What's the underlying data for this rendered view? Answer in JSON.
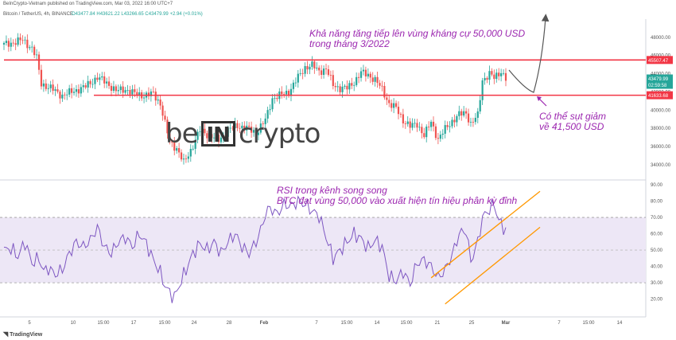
{
  "header": {
    "published": "BeInCrypto-Vietnam published on TradingView.com, Mar 03, 2022 16:00 UTC+7",
    "symbol": "Bitcoin / TetherUS, 4h, BINANCE",
    "ohlc": "O43477.84  H43621.22  L43266.65  C43479.99  +2.94 (+0.01%)"
  },
  "annotations": {
    "resistance_line1": "Khả năng tăng tiếp lên vùng kháng cự 50,000 USD",
    "resistance_line2": "trong tháng 3/2022",
    "support_line1": "Có thể sụt giảm",
    "support_line2": "về 41,500 USD",
    "rsi_line1": "RSI trong kênh song song",
    "rsi_line2": "BTC đạt vùng 50,000 vào xuất hiện tín hiệu phân kỳ đỉnh"
  },
  "logo": {
    "left": "be",
    "box": "IN",
    "right": "crypto"
  },
  "brand": "TradingView",
  "colors": {
    "bull": "#26a69a",
    "bear": "#ef5350",
    "level_line": "#f23645",
    "rsi_line": "#7e57c2",
    "rsi_band": "#ede7f6",
    "channel": "#ff9800",
    "annotation": "#9c27b0"
  },
  "chart_data": [
    {
      "type": "candlestick",
      "title": "Bitcoin / TetherUS, 4h, BINANCE",
      "x_ticks": [
        "5",
        "10",
        "15:00",
        "17",
        "15:00",
        "24",
        "28",
        "Feb",
        "7",
        "15:00",
        "14",
        "15:00",
        "21",
        "25",
        "Mar",
        "7",
        "15:00",
        "14"
      ],
      "y_ticks": [
        34000,
        36000,
        38000,
        40000,
        42000,
        44000,
        46000,
        48000
      ],
      "ylim": [
        32500,
        50000
      ],
      "levels": [
        {
          "value": 45507.47,
          "label": "45507.47"
        },
        {
          "value": 41633.68,
          "label": "41633.68"
        }
      ],
      "last_price": {
        "value": 43479.99,
        "label": "43479.99",
        "countdown": "02:59:58"
      },
      "anchors": [
        [
          0,
          47200
        ],
        [
          5,
          47500
        ],
        [
          8,
          47700
        ],
        [
          12,
          46800
        ],
        [
          14,
          45700
        ],
        [
          16,
          42900
        ],
        [
          20,
          42400
        ],
        [
          25,
          41600
        ],
        [
          30,
          42100
        ],
        [
          35,
          42600
        ],
        [
          40,
          43600
        ],
        [
          44,
          43000
        ],
        [
          48,
          42100
        ],
        [
          52,
          42300
        ],
        [
          56,
          41800
        ],
        [
          60,
          41600
        ],
        [
          64,
          41800
        ],
        [
          67,
          40700
        ],
        [
          69,
          38500
        ],
        [
          71,
          36500
        ],
        [
          74,
          35800
        ],
        [
          77,
          34200
        ],
        [
          80,
          35600
        ],
        [
          84,
          37800
        ],
        [
          88,
          37200
        ],
        [
          92,
          36700
        ],
        [
          96,
          37800
        ],
        [
          100,
          38300
        ],
        [
          104,
          38000
        ],
        [
          108,
          37500
        ],
        [
          112,
          38900
        ],
        [
          115,
          41300
        ],
        [
          118,
          41600
        ],
        [
          122,
          42000
        ],
        [
          126,
          43600
        ],
        [
          129,
          44700
        ],
        [
          132,
          44900
        ],
        [
          135,
          44300
        ],
        [
          138,
          44500
        ],
        [
          141,
          42800
        ],
        [
          144,
          42400
        ],
        [
          147,
          42400
        ],
        [
          150,
          43100
        ],
        [
          153,
          44100
        ],
        [
          156,
          43900
        ],
        [
          159,
          43300
        ],
        [
          162,
          42300
        ],
        [
          165,
          40700
        ],
        [
          168,
          40200
        ],
        [
          171,
          38900
        ],
        [
          174,
          38200
        ],
        [
          177,
          38500
        ],
        [
          180,
          37200
        ],
        [
          183,
          38700
        ],
        [
          186,
          36800
        ],
        [
          189,
          37900
        ],
        [
          192,
          38800
        ],
        [
          195,
          39500
        ],
        [
          198,
          39700
        ],
        [
          200,
          38500
        ],
        [
          203,
          39400
        ],
        [
          205,
          43300
        ],
        [
          208,
          44000
        ],
        [
          210,
          43500
        ],
        [
          213,
          44300
        ],
        [
          215,
          43480
        ]
      ],
      "n_bars": 216
    },
    {
      "type": "line",
      "title": "RSI",
      "y_ticks": [
        20,
        30,
        40,
        50,
        60,
        70,
        80,
        90
      ],
      "ylim": [
        12,
        91
      ],
      "overbought": 70,
      "oversold": 30,
      "anchors": [
        [
          0,
          50
        ],
        [
          3,
          51
        ],
        [
          6,
          46
        ],
        [
          9,
          55
        ],
        [
          12,
          42
        ],
        [
          15,
          45
        ],
        [
          17,
          37
        ],
        [
          19,
          39
        ],
        [
          22,
          35
        ],
        [
          25,
          38
        ],
        [
          28,
          48
        ],
        [
          31,
          55
        ],
        [
          34,
          52
        ],
        [
          37,
          56
        ],
        [
          40,
          64
        ],
        [
          43,
          52
        ],
        [
          46,
          48
        ],
        [
          49,
          55
        ],
        [
          52,
          58
        ],
        [
          55,
          52
        ],
        [
          58,
          60
        ],
        [
          61,
          54
        ],
        [
          64,
          44
        ],
        [
          67,
          36
        ],
        [
          69,
          28
        ],
        [
          71,
          24
        ],
        [
          73,
          21
        ],
        [
          75,
          28
        ],
        [
          78,
          38
        ],
        [
          81,
          48
        ],
        [
          84,
          54
        ],
        [
          87,
          50
        ],
        [
          90,
          55
        ],
        [
          93,
          48
        ],
        [
          96,
          55
        ],
        [
          99,
          60
        ],
        [
          102,
          52
        ],
        [
          105,
          48
        ],
        [
          108,
          55
        ],
        [
          110,
          62
        ],
        [
          112,
          72
        ],
        [
          114,
          76
        ],
        [
          117,
          72
        ],
        [
          120,
          78
        ],
        [
          123,
          77
        ],
        [
          126,
          80
        ],
        [
          129,
          78
        ],
        [
          132,
          74
        ],
        [
          135,
          71
        ],
        [
          138,
          58
        ],
        [
          141,
          45
        ],
        [
          144,
          50
        ],
        [
          147,
          55
        ],
        [
          150,
          60
        ],
        [
          153,
          57
        ],
        [
          156,
          51
        ],
        [
          159,
          56
        ],
        [
          162,
          52
        ],
        [
          165,
          34
        ],
        [
          168,
          31
        ],
        [
          171,
          37
        ],
        [
          174,
          29
        ],
        [
          177,
          42
        ],
        [
          180,
          44
        ],
        [
          183,
          40
        ],
        [
          186,
          33
        ],
        [
          189,
          38
        ],
        [
          192,
          47
        ],
        [
          195,
          60
        ],
        [
          198,
          62
        ],
        [
          200,
          43
        ],
        [
          203,
          55
        ],
        [
          205,
          70
        ],
        [
          208,
          75
        ],
        [
          210,
          78
        ],
        [
          212,
          68
        ],
        [
          214,
          64
        ],
        [
          215,
          62
        ]
      ],
      "channel_upper": [
        [
          183,
          33
        ],
        [
          215,
          86
        ]
      ],
      "channel_lower": [
        [
          189,
          17
        ],
        [
          215,
          64
        ]
      ]
    }
  ]
}
